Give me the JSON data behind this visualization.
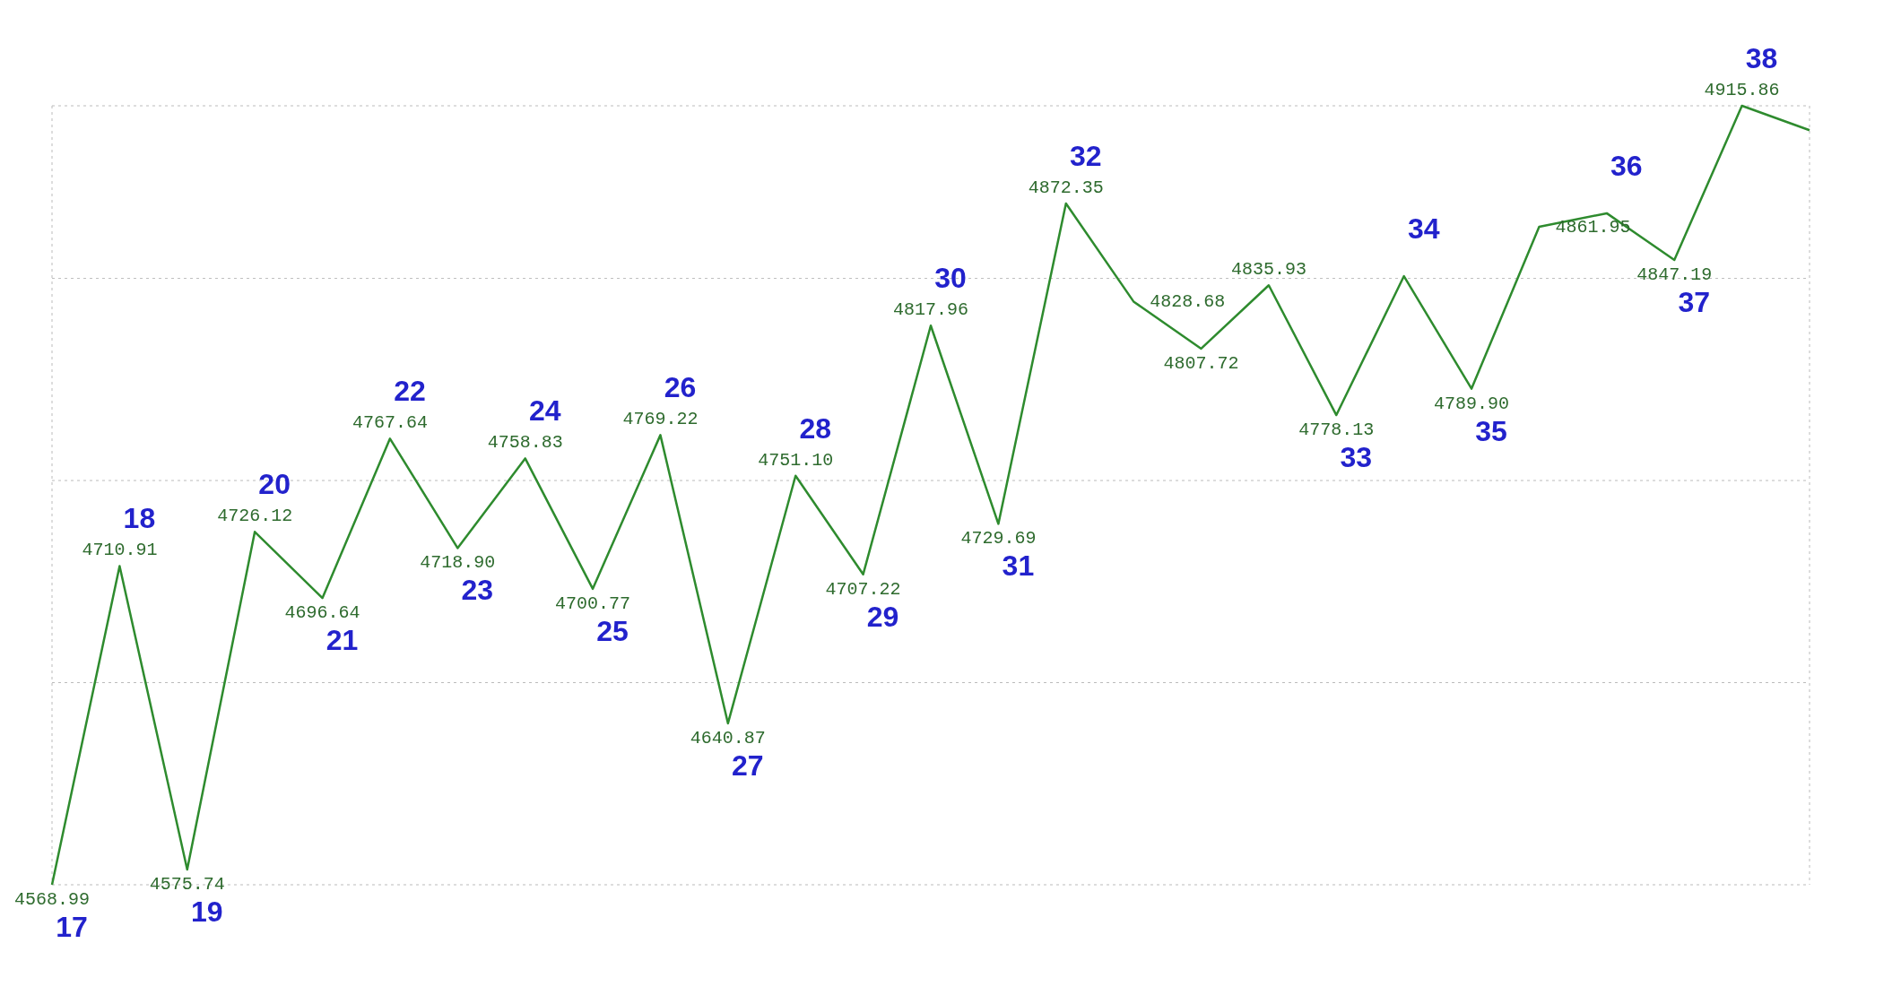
{
  "chart_data": {
    "type": "line",
    "categories": [
      null,
      null,
      null,
      null,
      null,
      null,
      null,
      null,
      null,
      null,
      null,
      null,
      null,
      null,
      null,
      null,
      null,
      null,
      null,
      null,
      null,
      null,
      null,
      null,
      null,
      null,
      null
    ],
    "series": [
      {
        "color": "#2e8b2e",
        "values": [
          4568.99,
          4710.91,
          4575.74,
          4726.12,
          4696.64,
          4767.64,
          4718.9,
          4758.83,
          4700.77,
          4769.22,
          4640.87,
          4751.1,
          4707.22,
          4817.96,
          4729.69,
          4872.35,
          4828.68,
          4807.72,
          4835.93,
          4778.13,
          4840,
          4789.9,
          4861.95,
          4868,
          4847.19,
          4915.86,
          4905
        ],
        "value_labels": [
          "4568.99",
          "4710.91",
          "4575.74",
          "4726.12",
          "4696.64",
          "4767.64",
          "4718.90",
          "4758.83",
          "4700.77",
          "4769.22",
          "4640.87",
          "4751.10",
          "4707.22",
          "4817.96",
          "4729.69",
          "4872.35",
          "4828.68",
          "4807.72",
          "4835.93",
          "4778.13",
          null,
          "4789.90",
          "4861.95",
          null,
          "4847.19",
          "4915.86",
          null
        ]
      }
    ],
    "annotations": [
      "17",
      "18",
      "19",
      "20",
      "21",
      "22",
      "23",
      "24",
      "25",
      "26",
      "27",
      "28",
      "29",
      "30",
      "31",
      "32",
      "33",
      "34",
      "35",
      "36",
      "37",
      "38"
    ],
    "grid": true,
    "legend": false,
    "marker": "none",
    "line_style": "solid",
    "tick_labels": false
  }
}
